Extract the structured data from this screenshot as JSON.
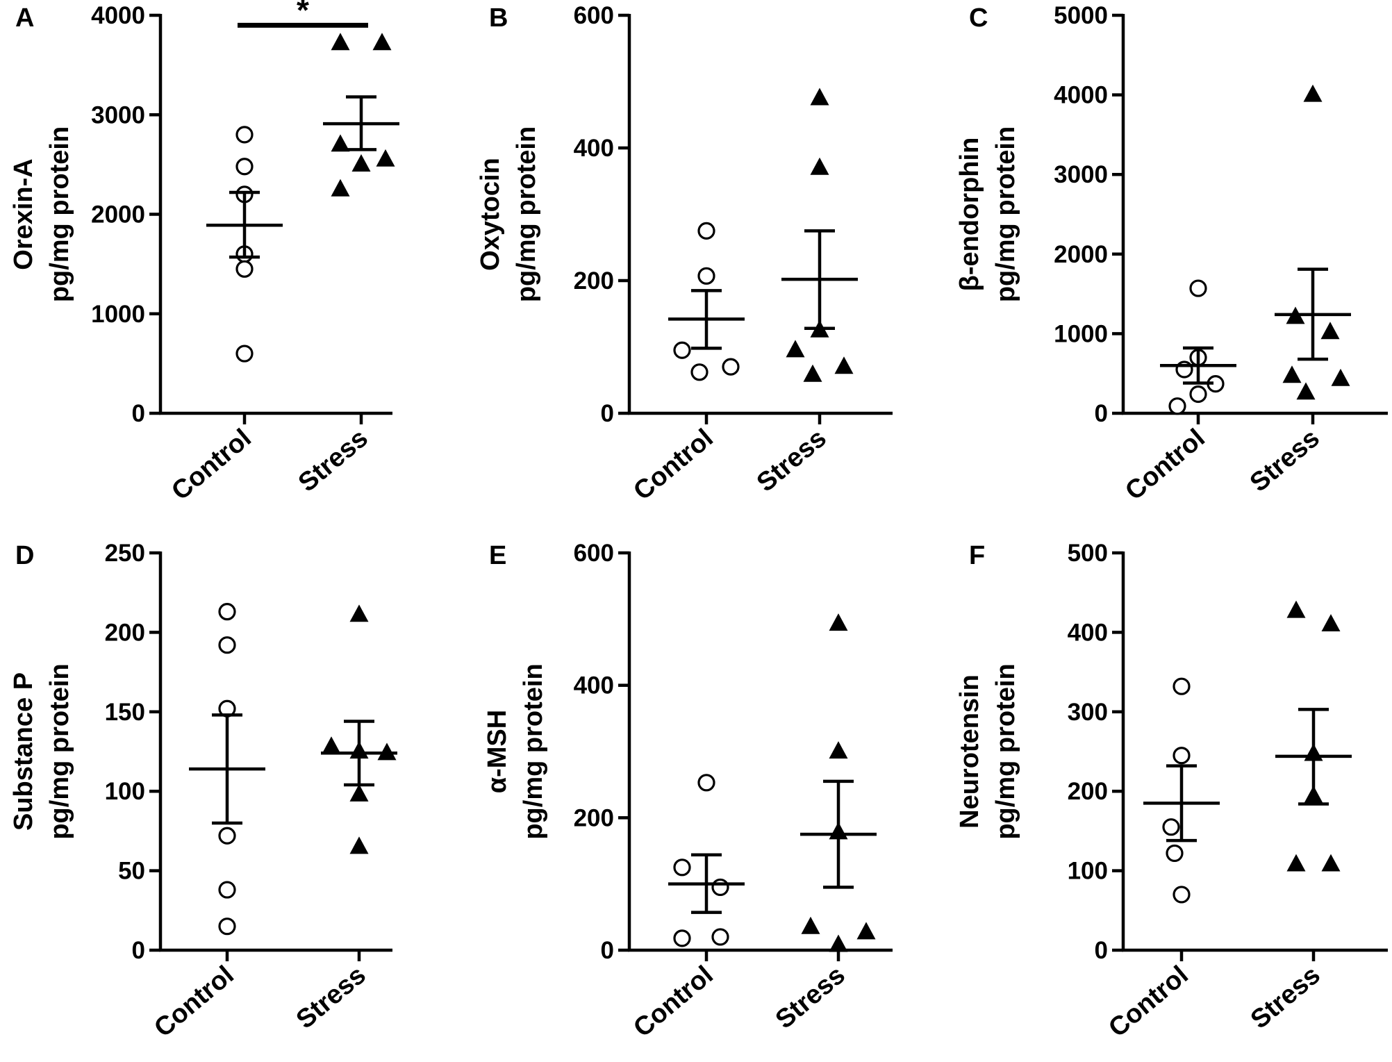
{
  "chart_data": [
    {
      "id": "A",
      "type": "scatter",
      "panel_label": "A",
      "ylabel": [
        "Orexin-A",
        "pg/mg protein"
      ],
      "ylim": [
        0,
        4000
      ],
      "ticks": [
        0,
        1000,
        2000,
        3000,
        4000
      ],
      "categories": [
        "Control",
        "Stress"
      ],
      "series": [
        {
          "name": "Control",
          "marker": "open-circle",
          "values": [
            2800,
            2480,
            2200,
            1600,
            1450,
            600
          ],
          "mean": 1890,
          "sem_low": 1570,
          "sem_high": 2220
        },
        {
          "name": "Stress",
          "marker": "filled-triangle",
          "values": [
            3720,
            3720,
            2700,
            2500,
            2550,
            2250
          ],
          "mean": 2910,
          "sem_low": 2650,
          "sem_high": 3180
        }
      ],
      "significance": {
        "label": "*",
        "y": 3900
      }
    },
    {
      "id": "B",
      "type": "scatter",
      "panel_label": "B",
      "ylabel": [
        "Oxytocin",
        "pg/mg protein"
      ],
      "ylim": [
        0,
        600
      ],
      "ticks": [
        0,
        200,
        400,
        600
      ],
      "categories": [
        "Control",
        "Stress"
      ],
      "series": [
        {
          "name": "Control",
          "marker": "open-circle",
          "values": [
            275,
            207,
            95,
            62,
            70
          ],
          "mean": 142,
          "sem_low": 98,
          "sem_high": 185
        },
        {
          "name": "Stress",
          "marker": "filled-triangle",
          "values": [
            475,
            370,
            125,
            95,
            70,
            58
          ],
          "mean": 202,
          "sem_low": 128,
          "sem_high": 275
        }
      ]
    },
    {
      "id": "C",
      "type": "scatter",
      "panel_label": "C",
      "ylabel": [
        "β-endorphin",
        "pg/mg protein"
      ],
      "ylim": [
        0,
        5000
      ],
      "ticks": [
        0,
        1000,
        2000,
        3000,
        4000,
        5000
      ],
      "categories": [
        "Control",
        "Stress"
      ],
      "series": [
        {
          "name": "Control",
          "marker": "open-circle",
          "values": [
            1570,
            700,
            550,
            370,
            240,
            90
          ],
          "mean": 600,
          "sem_low": 380,
          "sem_high": 820
        },
        {
          "name": "Stress",
          "marker": "filled-triangle",
          "values": [
            4000,
            1210,
            1020,
            470,
            430,
            260
          ],
          "mean": 1240,
          "sem_low": 680,
          "sem_high": 1810
        }
      ]
    },
    {
      "id": "D",
      "type": "scatter",
      "panel_label": "D",
      "ylabel": [
        "Substance P",
        "pg/mg protein"
      ],
      "ylim": [
        0,
        250
      ],
      "ticks": [
        0,
        50,
        100,
        150,
        200,
        250
      ],
      "categories": [
        "Control",
        "Stress"
      ],
      "series": [
        {
          "name": "Control",
          "marker": "open-circle",
          "values": [
            213,
            192,
            152,
            72,
            38,
            15
          ],
          "mean": 114,
          "sem_low": 80,
          "sem_high": 148
        },
        {
          "name": "Stress",
          "marker": "filled-triangle",
          "values": [
            211,
            128,
            125,
            124,
            98,
            65
          ],
          "mean": 124,
          "sem_low": 104,
          "sem_high": 144
        }
      ]
    },
    {
      "id": "E",
      "type": "scatter",
      "panel_label": "E",
      "ylabel": [
        "α-MSH",
        "pg/mg protein"
      ],
      "ylim": [
        0,
        600
      ],
      "ticks": [
        0,
        200,
        400,
        600
      ],
      "categories": [
        "Control",
        "Stress"
      ],
      "series": [
        {
          "name": "Control",
          "marker": "open-circle",
          "values": [
            253,
            125,
            95,
            18,
            20
          ],
          "mean": 100,
          "sem_low": 57,
          "sem_high": 144
        },
        {
          "name": "Stress",
          "marker": "filled-triangle",
          "values": [
            493,
            300,
            178,
            35,
            27,
            8
          ],
          "mean": 175,
          "sem_low": 95,
          "sem_high": 255
        }
      ]
    },
    {
      "id": "F",
      "type": "scatter",
      "panel_label": "F",
      "ylabel": [
        "Neurotensin",
        "pg/mg protein"
      ],
      "ylim": [
        0,
        500
      ],
      "ticks": [
        0,
        100,
        200,
        300,
        400,
        500
      ],
      "categories": [
        "Control",
        "Stress"
      ],
      "series": [
        {
          "name": "Control",
          "marker": "open-circle",
          "values": [
            332,
            245,
            155,
            122,
            70
          ],
          "mean": 185,
          "sem_low": 138,
          "sem_high": 232
        },
        {
          "name": "Stress",
          "marker": "filled-triangle",
          "values": [
            427,
            410,
            247,
            194,
            108,
            108
          ],
          "mean": 244,
          "sem_low": 184,
          "sem_high": 303
        }
      ]
    }
  ]
}
